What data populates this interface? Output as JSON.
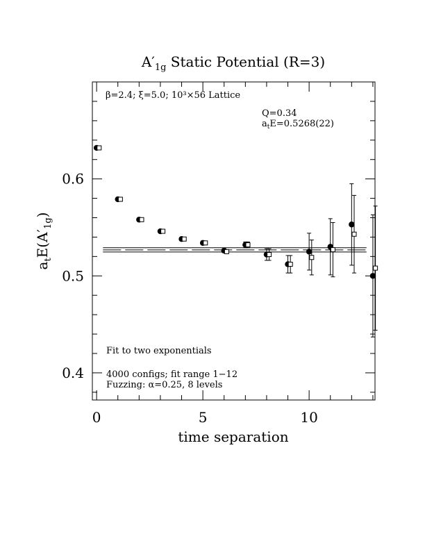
{
  "chart_data": {
    "type": "scatter",
    "title": "A′1g Static Potential (R=3)",
    "title_parts": {
      "main": "A",
      "prime": "′",
      "sub": "1g",
      "rest": " Static Potential (R=3)"
    },
    "xlabel": "time separation",
    "ylabel": "a_t E(A′1g)",
    "ylabel_parts": {
      "a": "a",
      "a_sub": "t",
      "e": "E(A",
      "prime": "′",
      "sub": "1g",
      "close": ")"
    },
    "xlim": [
      -0.2,
      13.1
    ],
    "ylim": [
      0.372,
      0.7
    ],
    "x_ticks": [
      0,
      5,
      10
    ],
    "x_tick_labels": [
      "0",
      "5",
      "10"
    ],
    "y_ticks": [
      0.4,
      0.5,
      0.6
    ],
    "y_tick_labels": [
      "0.4",
      "0.5",
      "0.6"
    ],
    "x_minor_step": 1,
    "y_minor_step": 0.02,
    "grid": false,
    "series": [
      {
        "marker": "filled-circle",
        "points": [
          {
            "x": 0,
            "y": 0.632,
            "err": 0.001
          },
          {
            "x": 1,
            "y": 0.579,
            "err": 0.001
          },
          {
            "x": 2,
            "y": 0.558,
            "err": 0.001
          },
          {
            "x": 3,
            "y": 0.546,
            "err": 0.001
          },
          {
            "x": 4,
            "y": 0.538,
            "err": 0.001
          },
          {
            "x": 5,
            "y": 0.534,
            "err": 0.002
          },
          {
            "x": 6,
            "y": 0.526,
            "err": 0.002
          },
          {
            "x": 7,
            "y": 0.532,
            "err": 0.003
          },
          {
            "x": 8,
            "y": 0.522,
            "err": 0.006
          },
          {
            "x": 9,
            "y": 0.512,
            "err": 0.009
          },
          {
            "x": 10,
            "y": 0.525,
            "err": 0.019
          },
          {
            "x": 11,
            "y": 0.53,
            "err": 0.029
          },
          {
            "x": 12,
            "y": 0.553,
            "err": 0.042
          },
          {
            "x": 13,
            "y": 0.5,
            "err": 0.063
          }
        ]
      },
      {
        "marker": "open-square",
        "x_offset": 0.12,
        "points": [
          {
            "x": 0,
            "y": 0.632,
            "err": 0.001
          },
          {
            "x": 1,
            "y": 0.579,
            "err": 0.001
          },
          {
            "x": 2,
            "y": 0.558,
            "err": 0.001
          },
          {
            "x": 3,
            "y": 0.546,
            "err": 0.001
          },
          {
            "x": 4,
            "y": 0.538,
            "err": 0.001
          },
          {
            "x": 5,
            "y": 0.534,
            "err": 0.002
          },
          {
            "x": 6,
            "y": 0.525,
            "err": 0.002
          },
          {
            "x": 7,
            "y": 0.532,
            "err": 0.003
          },
          {
            "x": 8,
            "y": 0.522,
            "err": 0.006
          },
          {
            "x": 9,
            "y": 0.512,
            "err": 0.009
          },
          {
            "x": 10,
            "y": 0.519,
            "err": 0.018
          },
          {
            "x": 11,
            "y": 0.527,
            "err": 0.028
          },
          {
            "x": 12,
            "y": 0.543,
            "err": 0.04
          },
          {
            "x": 13,
            "y": 0.508,
            "err": 0.064
          }
        ]
      }
    ],
    "fit": {
      "x_range": [
        1,
        12
      ],
      "value": 0.5268,
      "error": 0.0022
    },
    "annotations": {
      "lattice": "β=2.4; ξ=5.0; 10³×56 Lattice",
      "q_value": "Q=0.34",
      "energy": {
        "prefix": "a",
        "sub": "t",
        "rest": "E=0.5268(22)"
      },
      "fit_type": "Fit to two exponentials",
      "configs": "4000 configs; fit range 1−12",
      "fuzzing": "Fuzzing: α=0.25, 8 levels"
    }
  }
}
